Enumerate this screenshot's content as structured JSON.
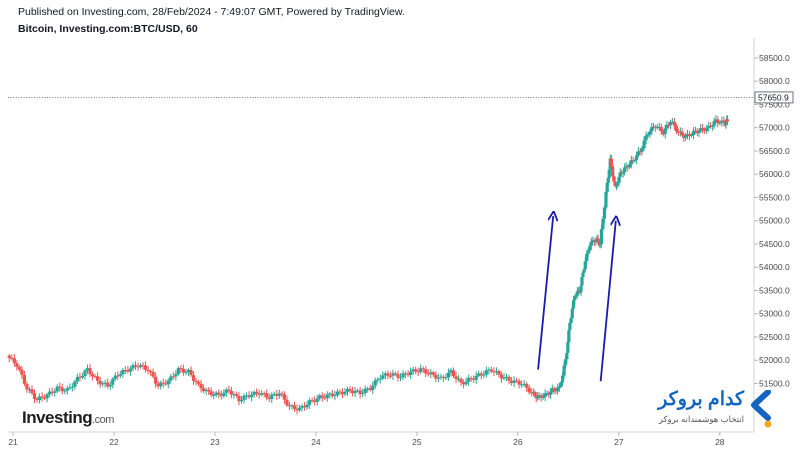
{
  "header": {
    "published": "Published on Investing.com, 28/Feb/2024 - 7:49:07 GMT, Powered by TradingView.",
    "symbol": "Bitcoin, Investing.com:BTC/USD, 60"
  },
  "logo": {
    "brand": "Investing",
    "suffix": ".com"
  },
  "broker": {
    "name": "کدام بروکر",
    "tagline": "انتخاب هوشمندانه بروکر"
  },
  "colors": {
    "up": "#26a69a",
    "down": "#ef5350",
    "arrow": "#1a1ab0",
    "accent": "#1565c0"
  },
  "chart_data": {
    "type": "candlestick",
    "interval": "60",
    "x_ticks": [
      "21",
      "22",
      "23",
      "24",
      "25",
      "26",
      "27",
      "28"
    ],
    "y_ticks": [
      "51500.0",
      "52000.0",
      "52500.0",
      "53000.0",
      "53500.0",
      "54000.0",
      "54500.0",
      "55000.0",
      "55500.0",
      "56000.0",
      "56500.0",
      "57000.0",
      "57500.0",
      "58000.0",
      "58500.0"
    ],
    "ylim": [
      50500,
      58800
    ],
    "xlim": [
      20.95,
      28.2
    ],
    "last_price": "57650.9",
    "last_price_value": 57650.9,
    "annotations": [
      {
        "type": "arrow",
        "from": [
          26.2,
          51800
        ],
        "to": [
          26.35,
          55100
        ]
      },
      {
        "type": "arrow",
        "from": [
          26.82,
          51550
        ],
        "to": [
          26.97,
          55000
        ]
      }
    ],
    "closes": [
      [
        20.95,
        52100
      ],
      [
        21.05,
        51900
      ],
      [
        21.15,
        51400
      ],
      [
        21.25,
        51150
      ],
      [
        21.35,
        51250
      ],
      [
        21.45,
        51400
      ],
      [
        21.55,
        51350
      ],
      [
        21.65,
        51600
      ],
      [
        21.75,
        51800
      ],
      [
        21.85,
        51550
      ],
      [
        21.95,
        51450
      ],
      [
        22.05,
        51700
      ],
      [
        22.15,
        51800
      ],
      [
        22.25,
        51900
      ],
      [
        22.35,
        51800
      ],
      [
        22.45,
        51450
      ],
      [
        22.55,
        51550
      ],
      [
        22.65,
        51800
      ],
      [
        22.75,
        51750
      ],
      [
        22.85,
        51450
      ],
      [
        22.95,
        51300
      ],
      [
        23.05,
        51250
      ],
      [
        23.15,
        51350
      ],
      [
        23.25,
        51150
      ],
      [
        23.35,
        51250
      ],
      [
        23.45,
        51300
      ],
      [
        23.55,
        51200
      ],
      [
        23.65,
        51300
      ],
      [
        23.75,
        51000
      ],
      [
        23.85,
        50950
      ],
      [
        23.95,
        51100
      ],
      [
        24.05,
        51200
      ],
      [
        24.15,
        51250
      ],
      [
        24.25,
        51300
      ],
      [
        24.35,
        51350
      ],
      [
        24.45,
        51300
      ],
      [
        24.55,
        51400
      ],
      [
        24.65,
        51650
      ],
      [
        24.75,
        51700
      ],
      [
        24.85,
        51650
      ],
      [
        24.95,
        51750
      ],
      [
        25.05,
        51800
      ],
      [
        25.15,
        51700
      ],
      [
        25.25,
        51600
      ],
      [
        25.35,
        51750
      ],
      [
        25.45,
        51500
      ],
      [
        25.55,
        51600
      ],
      [
        25.65,
        51700
      ],
      [
        25.75,
        51800
      ],
      [
        25.85,
        51650
      ],
      [
        25.95,
        51550
      ],
      [
        26.05,
        51500
      ],
      [
        26.15,
        51300
      ],
      [
        26.2,
        51200
      ],
      [
        26.28,
        51250
      ],
      [
        26.35,
        51350
      ],
      [
        26.42,
        51400
      ],
      [
        26.48,
        52000
      ],
      [
        26.52,
        52800
      ],
      [
        26.57,
        53400
      ],
      [
        26.62,
        53500
      ],
      [
        26.66,
        54000
      ],
      [
        26.72,
        54500
      ],
      [
        26.78,
        54600
      ],
      [
        26.82,
        54500
      ],
      [
        26.88,
        55600
      ],
      [
        26.92,
        56300
      ],
      [
        26.97,
        55700
      ],
      [
        27.02,
        56000
      ],
      [
        27.08,
        56150
      ],
      [
        27.15,
        56300
      ],
      [
        27.22,
        56500
      ],
      [
        27.3,
        56900
      ],
      [
        27.37,
        57050
      ],
      [
        27.45,
        56900
      ],
      [
        27.52,
        57150
      ],
      [
        27.6,
        56900
      ],
      [
        27.67,
        56800
      ],
      [
        27.75,
        56900
      ],
      [
        27.82,
        56950
      ],
      [
        27.9,
        57000
      ],
      [
        27.97,
        57150
      ],
      [
        28.05,
        57100
      ],
      [
        28.08,
        57150
      ]
    ]
  }
}
